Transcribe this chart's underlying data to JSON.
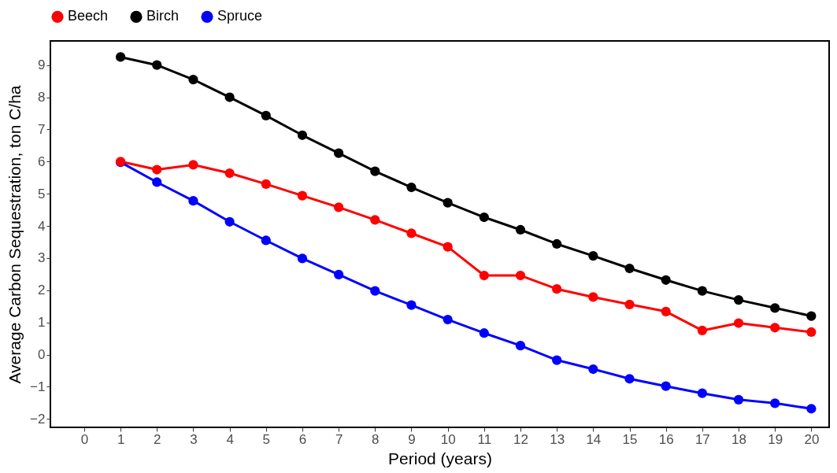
{
  "chart_data": {
    "type": "line",
    "xlabel": "Period (years)",
    "ylabel": "Average Carbon Sequestration, ton C/ha",
    "x": [
      1,
      2,
      3,
      4,
      5,
      6,
      7,
      8,
      9,
      10,
      11,
      12,
      13,
      14,
      15,
      16,
      17,
      18,
      19,
      20
    ],
    "series": [
      {
        "name": "Beech",
        "color": "#ff0000",
        "values": [
          6.0,
          5.75,
          5.9,
          5.64,
          5.3,
          4.94,
          4.58,
          4.19,
          3.77,
          3.35,
          2.46,
          2.46,
          2.04,
          1.79,
          1.56,
          1.34,
          0.75,
          0.98,
          0.84,
          0.7
        ]
      },
      {
        "name": "Birch",
        "color": "#000000",
        "values": [
          9.25,
          9.0,
          8.55,
          8.0,
          7.43,
          6.82,
          6.26,
          5.7,
          5.2,
          4.72,
          4.27,
          3.88,
          3.44,
          3.07,
          2.68,
          2.32,
          1.98,
          1.7,
          1.45,
          1.2
        ]
      },
      {
        "name": "Spruce",
        "color": "#0000ff",
        "values": [
          5.98,
          5.36,
          4.78,
          4.13,
          3.55,
          2.99,
          2.49,
          1.98,
          1.54,
          1.09,
          0.67,
          0.28,
          -0.17,
          -0.45,
          -0.75,
          -0.98,
          -1.2,
          -1.4,
          -1.51,
          -1.68
        ]
      }
    ],
    "xlim": [
      -0.93,
      20.49
    ],
    "xticks": [
      0,
      1,
      2,
      3,
      4,
      5,
      6,
      7,
      8,
      9,
      10,
      11,
      12,
      13,
      14,
      15,
      16,
      17,
      18,
      19,
      20
    ],
    "ylim": [
      -2.26,
      9.75
    ],
    "yticks": [
      -2,
      -1,
      0,
      1,
      2,
      3,
      4,
      5,
      6,
      7,
      8,
      9
    ],
    "grid": false,
    "legend": "top",
    "marker": "circle",
    "line_style": "solid"
  }
}
